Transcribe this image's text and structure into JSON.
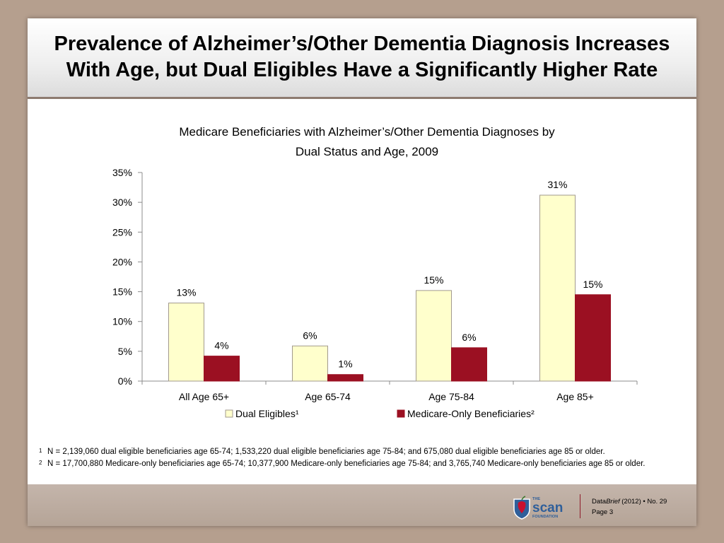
{
  "slide": {
    "title_line1": "Prevalence of Alzheimer’s/Other Dementia Diagnosis Increases",
    "title_line2": "With Age, but Dual Eligibles Have a Significantly Higher Rate"
  },
  "chart_data": {
    "type": "bar",
    "title": "Medicare Beneficiaries with Alzheimer’s/Other Dementia Diagnoses by Dual Status and Age, 2009",
    "title_line1": "Medicare Beneficiaries with Alzheimer’s/Other Dementia Diagnoses by",
    "title_line2": "Dual Status and Age, 2009",
    "categories": [
      "All Age 65+",
      "Age 65-74",
      "Age 75-84",
      "Age 85+"
    ],
    "series": [
      {
        "name": "Dual Eligibles¹",
        "values": [
          13.1,
          5.9,
          15.2,
          31.2
        ],
        "labels": [
          "13%",
          "6%",
          "15%",
          "31%"
        ],
        "color": "#ffffcc",
        "stroke": "#a29a8e"
      },
      {
        "name": "Medicare-Only Beneficiaries²",
        "values": [
          4.2,
          1.1,
          5.6,
          14.5
        ],
        "labels": [
          "4%",
          "1%",
          "6%",
          "15%"
        ],
        "color": "#9b1022",
        "stroke": "#9b1022"
      }
    ],
    "ylim": [
      0,
      35
    ],
    "yticks": [
      "0%",
      "5%",
      "10%",
      "15%",
      "20%",
      "25%",
      "30%",
      "35%"
    ],
    "ytick_values": [
      0,
      5,
      10,
      15,
      20,
      25,
      30,
      35
    ],
    "xlabel": "",
    "ylabel": "",
    "grid": false,
    "legend": "bottom"
  },
  "footnotes": [
    {
      "mark": "1",
      "text": "N = 2,139,060 dual eligible beneficiaries age 65-74; 1,533,220 dual eligible beneficiaries age 75-84; and 675,080 dual eligible beneficiaries age 85 or older."
    },
    {
      "mark": "2",
      "text": "N = 17,700,880 Medicare-only beneficiaries age 65-74; 10,377,900 Medicare-only beneficiaries age 75-84; and 3,765,740 Medicare-only beneficiaries age 85 or older."
    }
  ],
  "footer": {
    "logo_small": "THE",
    "logo_main": "scan",
    "logo_sub": "FOUNDATION",
    "brand_prefix": "Data",
    "brand_italic": "Brief",
    "brand_year": "(2012)",
    "bullet": "•",
    "issue": "No. 29",
    "page": "Page 3"
  }
}
